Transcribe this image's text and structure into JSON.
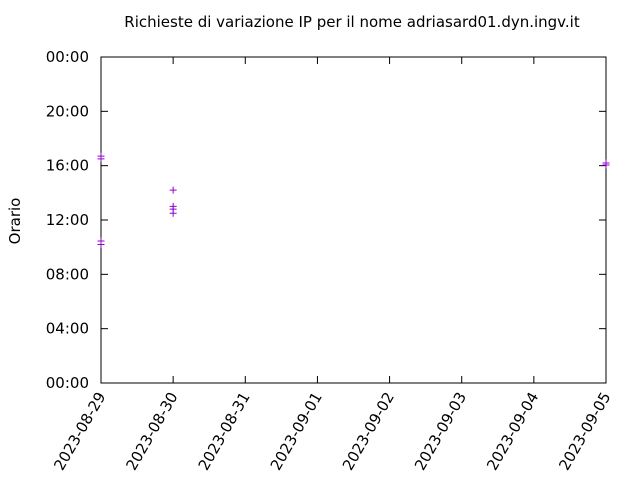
{
  "chart_data": {
    "type": "scatter",
    "title": "Richieste di variazione IP per il nome adriasard01.dyn.ingv.it",
    "y_label": "Orario",
    "color": "#9400d3",
    "marker": "plus",
    "x": [
      "2023-08-29",
      "2023-08-29",
      "2023-08-29",
      "2023-08-29",
      "2023-08-30",
      "2023-08-30",
      "2023-08-30",
      "2023-08-30",
      "2023-09-05",
      "2023-09-05"
    ],
    "values": [
      16.7,
      16.5,
      10.45,
      10.2,
      14.2,
      13.0,
      12.8,
      12.5,
      16.2,
      16.05
    ],
    "xlim": [
      "2023-08-29",
      "2023-09-05"
    ],
    "xticks": [
      "2023-08-29",
      "2023-08-30",
      "2023-08-31",
      "2023-09-01",
      "2023-09-02",
      "2023-09-03",
      "2023-09-04",
      "2023-09-05"
    ],
    "ylim": [
      0,
      24
    ],
    "yticks": [
      {
        "value": 0,
        "label": "00:00"
      },
      {
        "value": 4,
        "label": "04:00"
      },
      {
        "value": 8,
        "label": "08:00"
      },
      {
        "value": 12,
        "label": "12:00"
      },
      {
        "value": 16,
        "label": "16:00"
      },
      {
        "value": 20,
        "label": "20:00"
      },
      {
        "value": 24,
        "label": "00:00"
      }
    ],
    "grid": false
  }
}
